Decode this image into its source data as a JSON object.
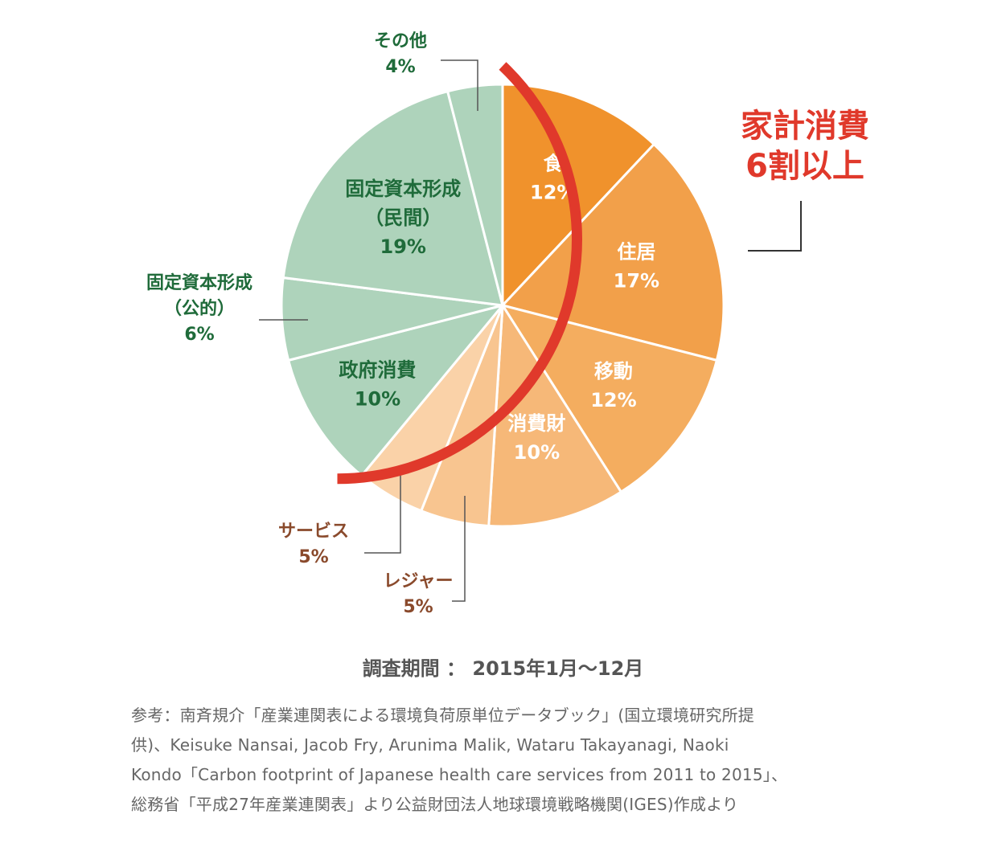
{
  "chart_data": {
    "type": "pie",
    "slices": [
      {
        "label": "食",
        "value": 12,
        "value_label": "12%",
        "color": "#f0922c",
        "label_color": "#ffffff"
      },
      {
        "label": "住居",
        "value": 17,
        "value_label": "17%",
        "color": "#f2a04a",
        "label_color": "#ffffff"
      },
      {
        "label": "移動",
        "value": 12,
        "value_label": "12%",
        "color": "#f4ad5f",
        "label_color": "#ffffff"
      },
      {
        "label": "消費財",
        "value": 10,
        "value_label": "10%",
        "color": "#f6b878",
        "label_color": "#ffffff"
      },
      {
        "label": "レジャー",
        "value": 5,
        "value_label": "5%",
        "color": "#f8c590",
        "label_color": "#8a4a2c"
      },
      {
        "label": "サービス",
        "value": 5,
        "value_label": "5%",
        "color": "#fad2a8",
        "label_color": "#8a4a2c"
      },
      {
        "label": "政府消費",
        "value": 10,
        "value_label": "10%",
        "color": "#aed3bb",
        "label_color": "#1f6b3a"
      },
      {
        "label": "固定資本形成（公的）",
        "label_lines": [
          "固定資本形成",
          "（公的）"
        ],
        "value": 6,
        "value_label": "6%",
        "color": "#aed3bb",
        "label_color": "#1f6b3a"
      },
      {
        "label": "固定資本形成（民間）",
        "label_lines": [
          "固定資本形成",
          "（民間）"
        ],
        "value": 19,
        "value_label": "19%",
        "color": "#aed3bb",
        "label_color": "#1f6b3a"
      },
      {
        "label": "その他",
        "value": 4,
        "value_label": "4%",
        "color": "#aed3bb",
        "label_color": "#1f6b3a"
      }
    ],
    "annotation": {
      "lines": [
        "家計消費",
        "6割以上"
      ],
      "color": "#e0392b"
    }
  },
  "period": "調査期間 ： 2015年1月〜12月",
  "source_lines": [
    "参考：南斉規介「産業連関表による環境負荷原単位データブック」(国立環境研究所提",
    "供)、Keisuke Nansai, Jacob Fry, Arunima Malik, Wataru Takayanagi, Naoki",
    "Kondo「Carbon footprint of Japanese health care services from 2011 to 2015」、",
    "総務省「平成27年産業連関表」より公益財団法人地球環境戦略機関(IGES)作成より"
  ]
}
